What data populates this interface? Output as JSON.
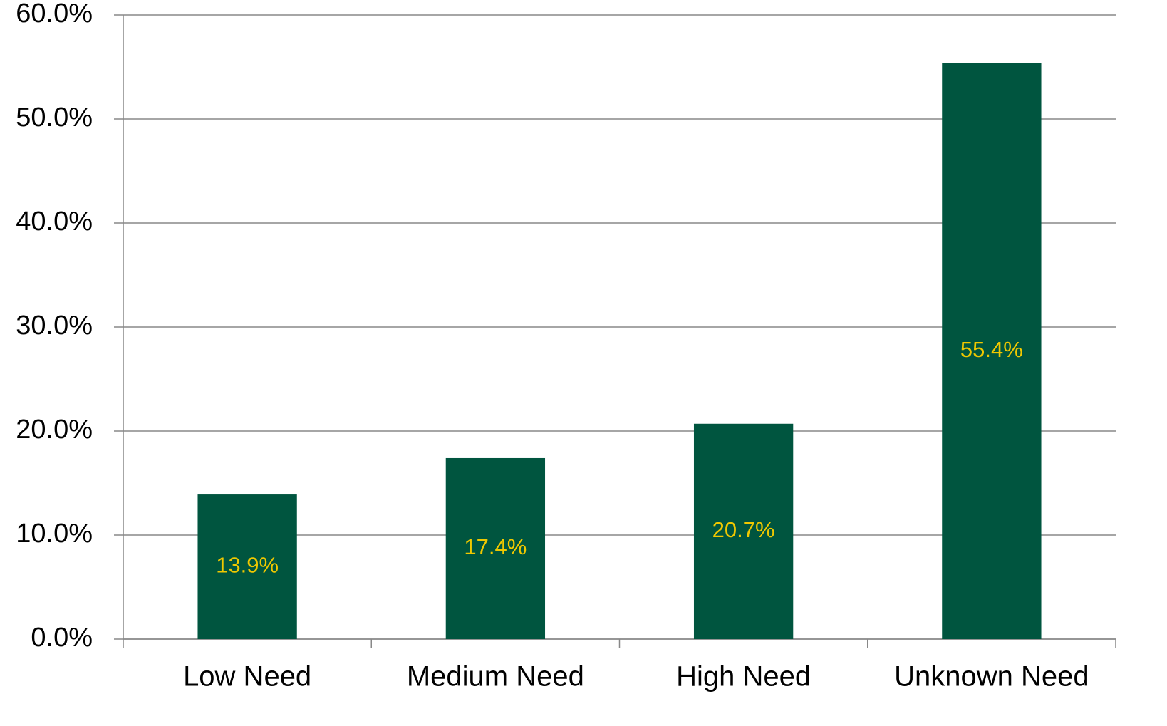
{
  "chart_data": {
    "type": "bar",
    "categories": [
      "Low Need",
      "Medium Need",
      "High Need",
      "Unknown Need"
    ],
    "values": [
      13.9,
      17.4,
      20.7,
      55.4
    ],
    "value_labels": [
      "13.9%",
      "17.4%",
      "20.7%",
      "55.4%"
    ],
    "color": "#00553f",
    "ylim": [
      0,
      60
    ],
    "yticks": [
      {
        "value": 0,
        "label": "0.0%"
      },
      {
        "value": 10,
        "label": "10.0%"
      },
      {
        "value": 20,
        "label": "20.0%"
      },
      {
        "value": 30,
        "label": "30.0%"
      },
      {
        "value": 40,
        "label": "40.0%"
      },
      {
        "value": 50,
        "label": "50.0%"
      },
      {
        "value": 60,
        "label": "60.0%"
      }
    ],
    "grid": true
  }
}
